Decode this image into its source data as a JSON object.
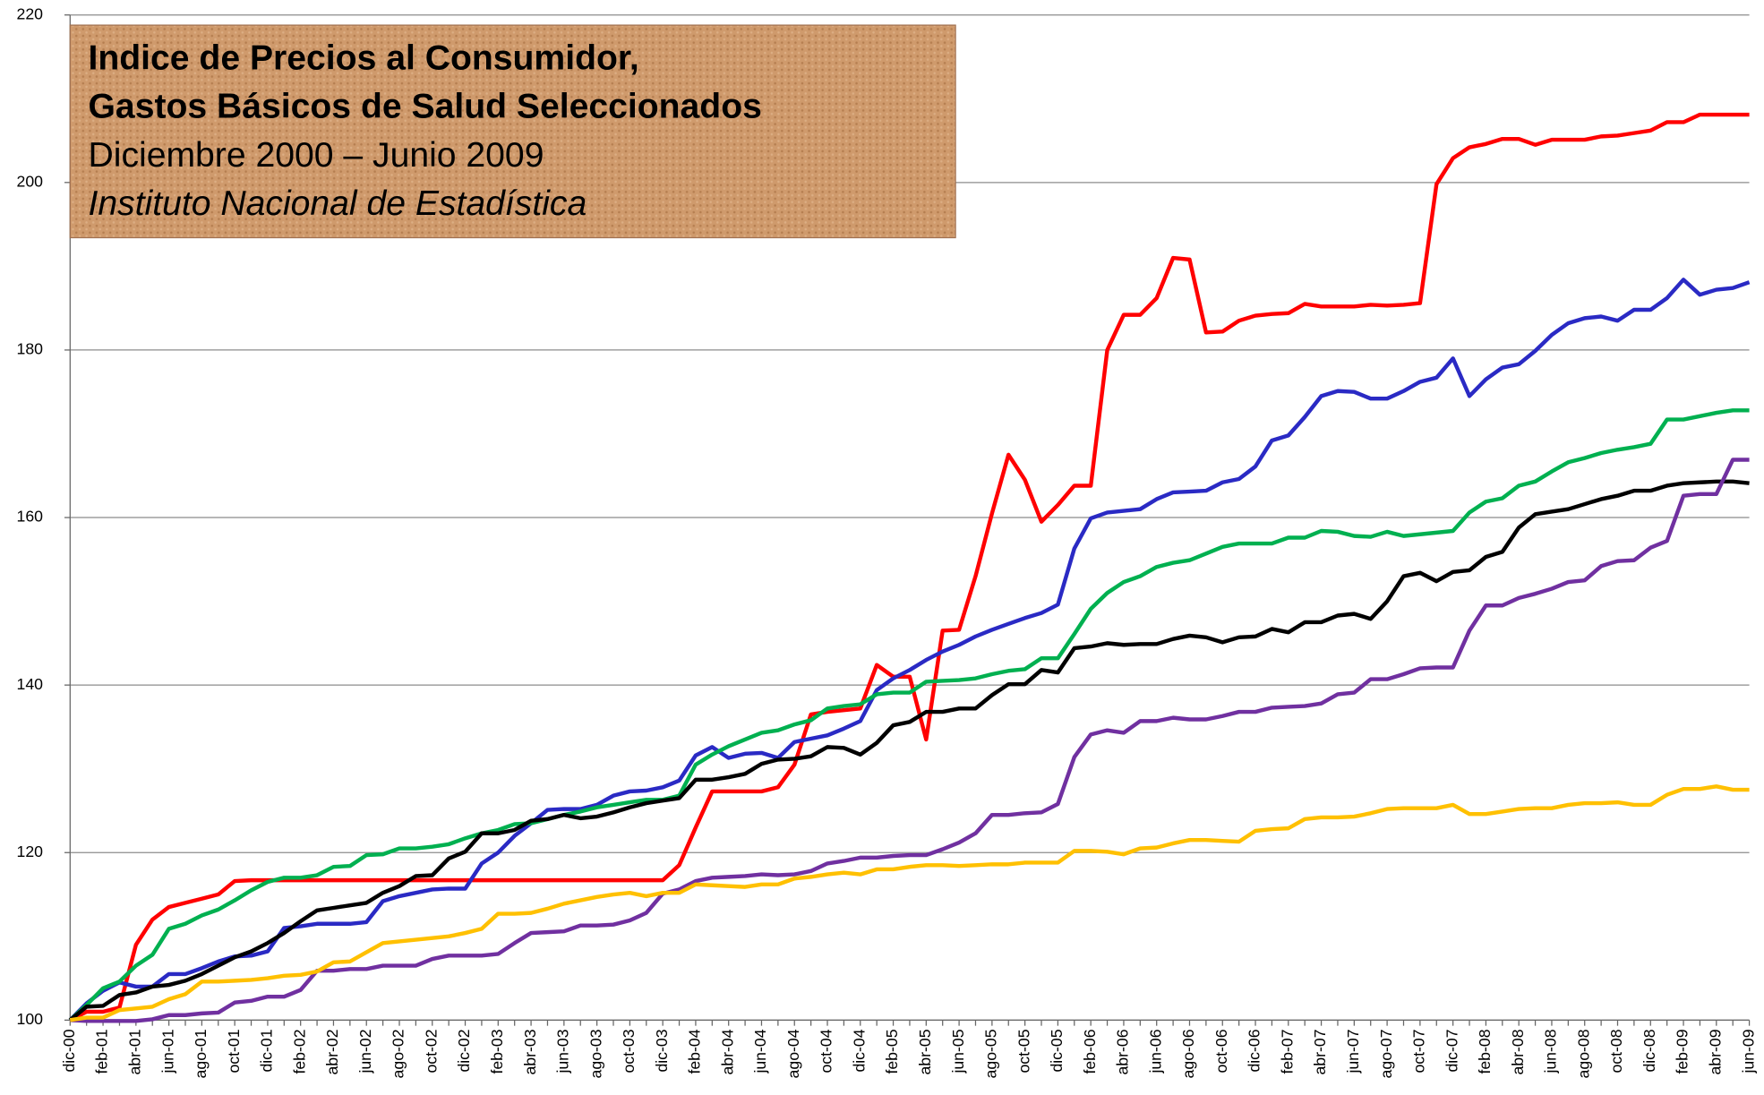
{
  "chart_data": {
    "type": "line",
    "title": [
      "Indice de Precios al Consumidor,",
      "Gastos Básicos de Salud Seleccionados"
    ],
    "subtitle": "Diciembre 2000 – Junio 2009",
    "source": "Instituto Nacional de Estadística",
    "categories": [
      "dic-00",
      null,
      "feb-01",
      null,
      "abr-01",
      null,
      "jun-01",
      null,
      "ago-01",
      null,
      "oct-01",
      null,
      "dic-01",
      null,
      "feb-02",
      null,
      "abr-02",
      null,
      "jun-02",
      null,
      "ago-02",
      null,
      "oct-02",
      null,
      "dic-02",
      null,
      "feb-03",
      null,
      "abr-03",
      null,
      "jun-03",
      null,
      "ago-03",
      null,
      "oct-03",
      null,
      "dic-03",
      null,
      "feb-04",
      null,
      "abr-04",
      null,
      "jun-04",
      null,
      "ago-04",
      null,
      "oct-04",
      null,
      "dic-04",
      null,
      "feb-05",
      null,
      "abr-05",
      null,
      "jun-05",
      null,
      "ago-05",
      null,
      "oct-05",
      null,
      "dic-05",
      null,
      "feb-06",
      null,
      "abr-06",
      null,
      "jun-06",
      null,
      "ago-06",
      null,
      "oct-06",
      null,
      "dic-06",
      null,
      "feb-07",
      null,
      "abr-07",
      null,
      "jun-07",
      null,
      "ago-07",
      null,
      "oct-07",
      null,
      "dic-07",
      null,
      "feb-08",
      null,
      "abr-08",
      null,
      "jun-08",
      null,
      "ago-08",
      null,
      "oct-08",
      null,
      "dic-08",
      null,
      "feb-09",
      null,
      "abr-09",
      null,
      "jun-09"
    ],
    "series": [
      {
        "color": "#ff0000",
        "values": [
          100,
          101,
          101,
          101.5,
          109,
          112,
          113.5,
          114,
          114.5,
          115,
          116.6,
          116.7,
          116.7,
          116.7,
          116.7,
          116.7,
          116.7,
          116.7,
          116.7,
          116.7,
          116.7,
          116.7,
          116.7,
          116.7,
          116.7,
          116.7,
          116.7,
          116.7,
          116.7,
          116.7,
          116.7,
          116.7,
          116.7,
          116.7,
          116.7,
          116.7,
          116.7,
          118.5,
          123,
          127.3,
          127.3,
          127.3,
          127.3,
          127.8,
          130.5,
          136.5,
          136.8,
          137,
          137.2,
          142.4,
          141,
          141,
          133.5,
          146.5,
          146.6,
          153,
          160.5,
          167.5,
          164.5,
          159.5,
          161.5,
          163.8,
          163.8,
          180,
          184.2,
          184.2,
          186.2,
          191,
          190.8,
          182.1,
          182.2,
          183.5,
          184.1,
          184.3,
          184.4,
          185.5,
          185.2,
          185.2,
          185.2,
          185.4,
          185.3,
          185.4,
          185.6,
          199.8,
          202.9,
          204.2,
          204.6,
          205.2,
          205.2,
          204.5,
          205.1,
          205.1,
          205.1,
          205.5,
          205.6,
          205.9,
          206.2,
          207.2,
          207.2,
          208.1,
          208.1,
          208.1,
          208.1
        ]
      },
      {
        "color": "#2a2ac4",
        "values": [
          100,
          102,
          103.5,
          104.5,
          104,
          104,
          105.5,
          105.5,
          106.2,
          107,
          107.6,
          107.7,
          108.2,
          111,
          111.2,
          111.5,
          111.5,
          111.5,
          111.7,
          114.2,
          114.8,
          115.2,
          115.6,
          115.7,
          115.7,
          118.7,
          120,
          122,
          123.5,
          125.1,
          125.2,
          125.2,
          125.7,
          126.8,
          127.3,
          127.4,
          127.8,
          128.6,
          131.6,
          132.6,
          131.3,
          131.8,
          131.9,
          131.3,
          133.2,
          133.6,
          134,
          134.8,
          135.7,
          139.4,
          140.8,
          141.8,
          143,
          144,
          144.8,
          145.8,
          146.6,
          147.3,
          148,
          148.6,
          149.6,
          156.3,
          159.9,
          160.6,
          160.8,
          161,
          162.2,
          163,
          163.1,
          163.2,
          164.2,
          164.6,
          166.1,
          169.2,
          169.8,
          172,
          174.5,
          175.1,
          175,
          174.2,
          174.2,
          175.1,
          176.2,
          176.7,
          179,
          174.5,
          176.5,
          177.9,
          178.3,
          179.9,
          181.8,
          183.2,
          183.8,
          184,
          183.5,
          184.8,
          184.8,
          186.2,
          188.4,
          186.6,
          187.2,
          187.4,
          188.1
        ]
      },
      {
        "color": "#00b050",
        "values": [
          100,
          101.8,
          103.8,
          104.6,
          106.5,
          107.8,
          110.9,
          111.5,
          112.5,
          113.2,
          114.3,
          115.5,
          116.5,
          117,
          117,
          117.3,
          118.3,
          118.4,
          119.7,
          119.8,
          120.5,
          120.5,
          120.7,
          121,
          121.7,
          122.3,
          122.7,
          123.4,
          123.5,
          124,
          124.5,
          124.9,
          125.4,
          125.7,
          126,
          126.3,
          126.3,
          126.8,
          130.5,
          131.7,
          132.7,
          133.5,
          134.3,
          134.6,
          135.3,
          135.8,
          137.2,
          137.5,
          137.7,
          138.9,
          139.1,
          139.1,
          140.4,
          140.5,
          140.6,
          140.8,
          141.3,
          141.7,
          141.9,
          143.2,
          143.2,
          146.1,
          149.1,
          151,
          152.3,
          153,
          154.1,
          154.6,
          154.9,
          155.7,
          156.5,
          156.9,
          156.9,
          156.9,
          157.6,
          157.6,
          158.4,
          158.3,
          157.8,
          157.7,
          158.3,
          157.8,
          158,
          158.2,
          158.4,
          160.6,
          161.9,
          162.3,
          163.8,
          164.3,
          165.5,
          166.6,
          167.1,
          167.7,
          168.1,
          168.4,
          168.8,
          171.7,
          171.7,
          172.1,
          172.5,
          172.8,
          172.8
        ]
      },
      {
        "color": "#000000",
        "values": [
          100,
          101.6,
          101.7,
          103,
          103.3,
          104,
          104.2,
          104.7,
          105.5,
          106.5,
          107.5,
          108.2,
          109.2,
          110.4,
          111.8,
          113.1,
          113.4,
          113.7,
          114,
          115.2,
          116,
          117.2,
          117.3,
          119.3,
          120.1,
          122.3,
          122.3,
          122.7,
          123.8,
          124,
          124.5,
          124.1,
          124.3,
          124.8,
          125.4,
          125.9,
          126.2,
          126.5,
          128.7,
          128.7,
          129,
          129.4,
          130.6,
          131.1,
          131.2,
          131.5,
          132.6,
          132.5,
          131.7,
          133.1,
          135.2,
          135.6,
          136.8,
          136.8,
          137.2,
          137.2,
          138.8,
          140.1,
          140.1,
          141.8,
          141.5,
          144.4,
          144.6,
          145,
          144.8,
          144.9,
          144.9,
          145.5,
          145.9,
          145.7,
          145.1,
          145.7,
          145.8,
          146.7,
          146.3,
          147.5,
          147.5,
          148.3,
          148.5,
          147.9,
          150,
          153,
          153.4,
          152.4,
          153.5,
          153.7,
          155.3,
          155.9,
          158.8,
          160.4,
          160.7,
          161,
          161.6,
          162.2,
          162.6,
          163.2,
          163.2,
          163.8,
          164.1,
          164.2,
          164.3,
          164.3,
          164.1
        ]
      },
      {
        "color": "#7030a0",
        "values": [
          100,
          99.9,
          99.9,
          99.9,
          99.9,
          100.1,
          100.6,
          100.6,
          100.8,
          100.9,
          102.1,
          102.3,
          102.8,
          102.8,
          103.6,
          105.9,
          105.9,
          106.1,
          106.1,
          106.5,
          106.5,
          106.5,
          107.3,
          107.7,
          107.7,
          107.7,
          107.9,
          109.2,
          110.4,
          110.5,
          110.6,
          111.3,
          111.3,
          111.4,
          111.9,
          112.8,
          115.1,
          115.6,
          116.6,
          117,
          117.1,
          117.2,
          117.4,
          117.3,
          117.4,
          117.8,
          118.7,
          119,
          119.4,
          119.4,
          119.6,
          119.7,
          119.7,
          120.4,
          121.2,
          122.3,
          124.5,
          124.5,
          124.7,
          124.8,
          125.8,
          131.4,
          134.1,
          134.6,
          134.3,
          135.7,
          135.7,
          136.1,
          135.9,
          135.9,
          136.3,
          136.8,
          136.8,
          137.3,
          137.4,
          137.5,
          137.8,
          138.9,
          139.1,
          140.7,
          140.7,
          141.3,
          142,
          142.1,
          142.1,
          146.5,
          149.5,
          149.5,
          150.4,
          150.9,
          151.5,
          152.3,
          152.5,
          154.2,
          154.8,
          154.9,
          156.4,
          157.2,
          162.6,
          162.8,
          162.8,
          166.9,
          166.9
        ]
      },
      {
        "color": "#ffc000",
        "values": [
          100,
          100.3,
          100.3,
          101.2,
          101.4,
          101.6,
          102.5,
          103.1,
          104.6,
          104.6,
          104.7,
          104.8,
          105,
          105.3,
          105.4,
          105.8,
          106.9,
          107,
          108.1,
          109.2,
          109.4,
          109.6,
          109.8,
          110,
          110.4,
          110.9,
          112.7,
          112.7,
          112.8,
          113.3,
          113.9,
          114.3,
          114.7,
          115,
          115.2,
          114.8,
          115.2,
          115.2,
          116.2,
          116.1,
          116,
          115.9,
          116.2,
          116.2,
          116.9,
          117.1,
          117.4,
          117.6,
          117.4,
          118,
          118,
          118.3,
          118.5,
          118.5,
          118.4,
          118.5,
          118.6,
          118.6,
          118.8,
          118.8,
          118.8,
          120.2,
          120.2,
          120.1,
          119.8,
          120.5,
          120.6,
          121.1,
          121.5,
          121.5,
          121.4,
          121.3,
          122.6,
          122.8,
          122.9,
          124,
          124.2,
          124.2,
          124.3,
          124.7,
          125.2,
          125.3,
          125.3,
          125.3,
          125.7,
          124.6,
          124.6,
          124.9,
          125.2,
          125.3,
          125.3,
          125.7,
          125.9,
          125.9,
          126,
          125.7,
          125.7,
          126.9,
          127.6,
          127.6,
          127.9,
          127.5,
          127.5
        ]
      }
    ],
    "ylim": [
      100,
      220
    ],
    "yticks": [
      100,
      120,
      140,
      160,
      180,
      200,
      220
    ],
    "grid": true
  }
}
